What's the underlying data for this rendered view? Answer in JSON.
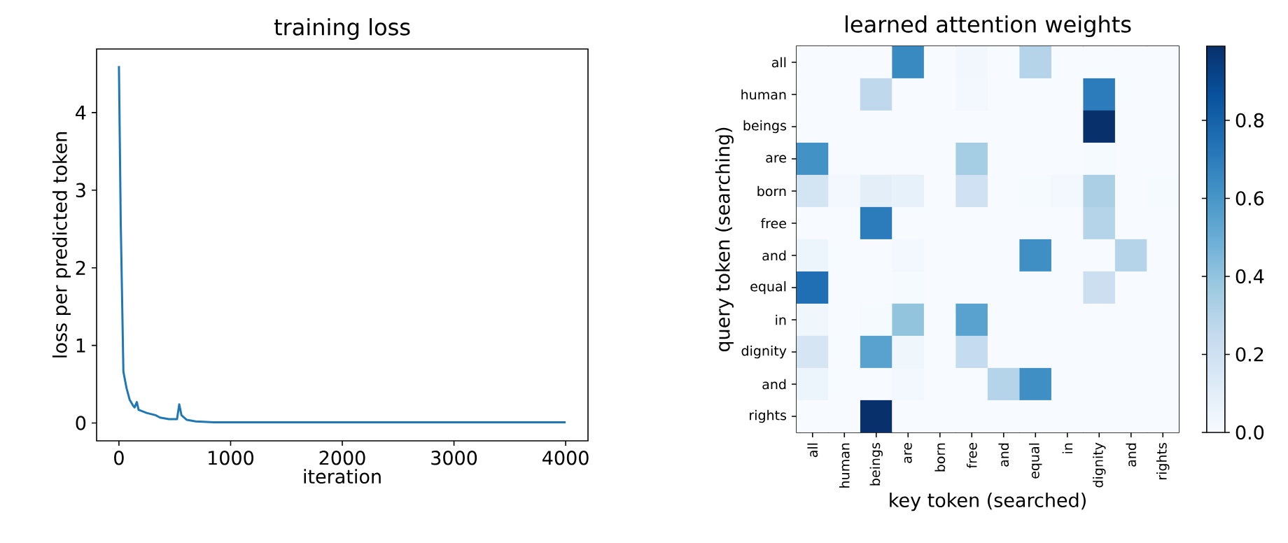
{
  "chart_data": [
    {
      "type": "line",
      "title": "training loss",
      "xlabel": "iteration",
      "ylabel": "loss per predicted token",
      "xlim": [
        -200,
        4200
      ],
      "ylim": [
        -0.23,
        4.82
      ],
      "xticks": [
        0,
        1000,
        2000,
        3000,
        4000
      ],
      "yticks": [
        0,
        1,
        2,
        3,
        4
      ],
      "series": [
        {
          "color": "#1f77b4",
          "x": [
            0,
            16,
            40,
            68,
            96,
            128,
            140,
            160,
            176,
            248,
            328,
            368,
            448,
            520,
            540,
            560,
            608,
            688,
            848,
            1500,
            2500,
            3500,
            4000
          ],
          "values": [
            4.6,
            2.6,
            0.66,
            0.45,
            0.3,
            0.22,
            0.2,
            0.27,
            0.17,
            0.13,
            0.1,
            0.07,
            0.05,
            0.05,
            0.24,
            0.1,
            0.04,
            0.02,
            0.01,
            0.01,
            0.01,
            0.01,
            0.01
          ]
        }
      ]
    },
    {
      "type": "heatmap",
      "title": "learned attention weights",
      "xlabel": "key token (searched)",
      "ylabel": "query token (searching)",
      "categories": [
        "all",
        "human",
        "beings",
        "are",
        "born",
        "free",
        "and",
        "equal",
        "in",
        "dignity",
        "and",
        "rights"
      ],
      "y_categories": [
        "all",
        "human",
        "beings",
        "are",
        "born",
        "free",
        "and",
        "equal",
        "in",
        "dignity",
        "and",
        "rights"
      ],
      "cells": [
        [
          0,
          0,
          0,
          0.65,
          0,
          0.03,
          0,
          0.3,
          0,
          0,
          0,
          0
        ],
        [
          0,
          0,
          0.27,
          0,
          0,
          0.02,
          0,
          0,
          0,
          0.7,
          0,
          0
        ],
        [
          0,
          0,
          0,
          0,
          0,
          0,
          0,
          0,
          0,
          0.99,
          0,
          0
        ],
        [
          0.62,
          0,
          0,
          0,
          0,
          0.35,
          0,
          0,
          0,
          0.01,
          0,
          0
        ],
        [
          0.18,
          0.02,
          0.1,
          0.08,
          0,
          0.2,
          0,
          0.01,
          0.02,
          0.33,
          0,
          0.01
        ],
        [
          0,
          0,
          0.7,
          0,
          0,
          0,
          0,
          0,
          0,
          0.3,
          0,
          0
        ],
        [
          0.05,
          0,
          0,
          0.02,
          0,
          0,
          0,
          0.63,
          0,
          0,
          0.3,
          0
        ],
        [
          0.75,
          0,
          0,
          0.01,
          0,
          0,
          0,
          0,
          0,
          0.22,
          0,
          0
        ],
        [
          0.04,
          0,
          0.01,
          0.4,
          0,
          0.55,
          0,
          0,
          0,
          0,
          0,
          0
        ],
        [
          0.17,
          0,
          0.55,
          0.04,
          0,
          0.25,
          0,
          0,
          0,
          0,
          0,
          0
        ],
        [
          0.05,
          0,
          0,
          0.02,
          0,
          0,
          0.3,
          0.63,
          0,
          0,
          0,
          0
        ],
        [
          0,
          0,
          0.99,
          0,
          0,
          0,
          0,
          0,
          0,
          0,
          0,
          0
        ]
      ],
      "clim": [
        0,
        0.99
      ],
      "cticks": [
        {
          "value": 0,
          "label": "0.0"
        },
        {
          "value": 0.2,
          "label": "0.2"
        },
        {
          "value": 0.4,
          "label": "0.4"
        },
        {
          "value": 0.6,
          "label": "0.6"
        },
        {
          "value": 0.8,
          "label": "0.8"
        }
      ]
    }
  ]
}
